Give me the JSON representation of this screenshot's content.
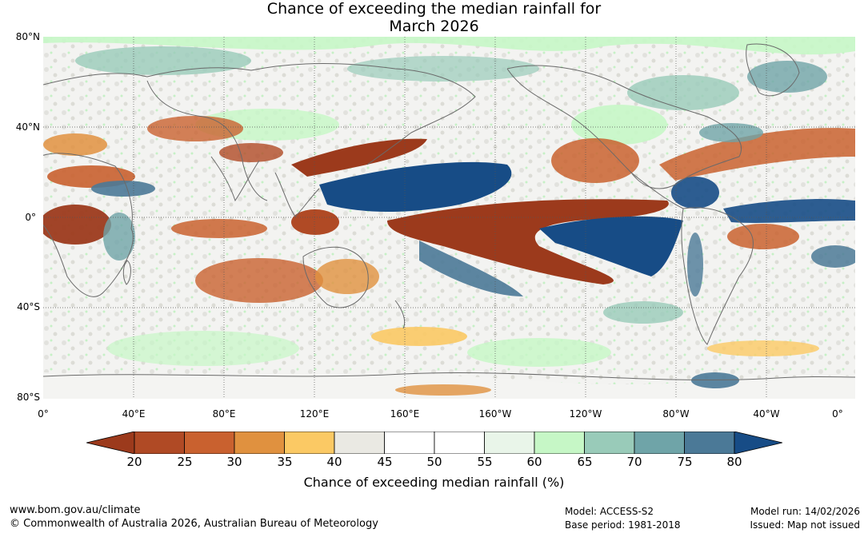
{
  "title": {
    "line1": "Chance of exceeding the median rainfall for",
    "line2": "March 2026"
  },
  "map": {
    "lat_labels": [
      "80°N",
      "40°N",
      "0°",
      "40°S",
      "80°S"
    ],
    "lon_labels": [
      "0°",
      "40°E",
      "80°E",
      "120°E",
      "160°E",
      "160°W",
      "120°W",
      "80°W",
      "40°W",
      "0°"
    ]
  },
  "colorbar": {
    "ticks": [
      "20",
      "25",
      "30",
      "35",
      "40",
      "45",
      "50",
      "55",
      "60",
      "65",
      "70",
      "75",
      "80"
    ],
    "colors": [
      "#9c3a1c",
      "#b04a25",
      "#c9612f",
      "#e0913f",
      "#fbc964",
      "#eae9e3",
      "#ffffff",
      "#ffffff",
      "#e9f5e9",
      "#c6f7c6",
      "#99cbb9",
      "#6fa4a8",
      "#4b7997",
      "#174c86"
    ],
    "label": "Chance of exceeding median rainfall (%)"
  },
  "footer": {
    "website": "www.bom.gov.au/climate",
    "copyright": "© Commonwealth of Australia 2026, Australian Bureau of Meteorology",
    "model": "Model: ACCESS-S2",
    "base_period": "Base period: 1981-2018",
    "model_run": "Model run: 14/02/2026",
    "issued": "Issued: Map not issued"
  }
}
